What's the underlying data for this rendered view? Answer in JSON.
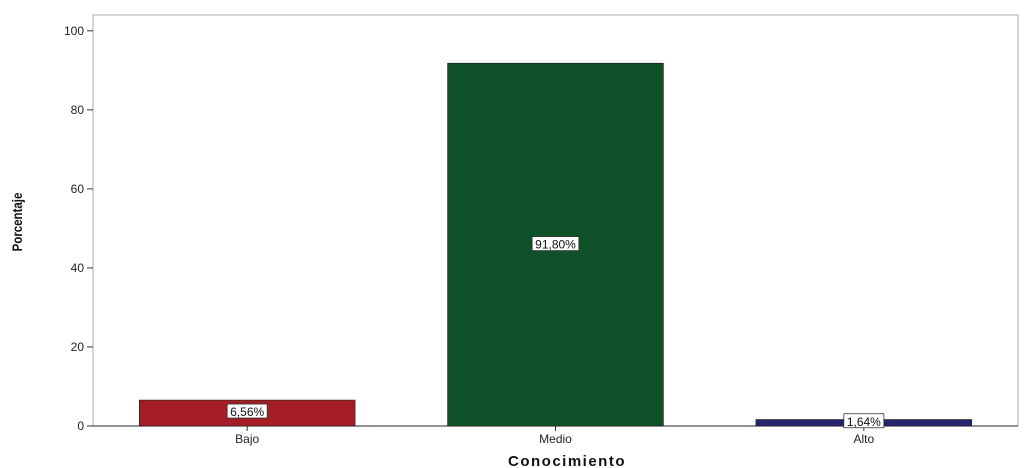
{
  "chart_data": {
    "type": "bar",
    "categories": [
      "Bajo",
      "Medio",
      "Alto"
    ],
    "values": [
      6.56,
      91.8,
      1.64
    ],
    "data_labels": [
      "6,56%",
      "91,80%",
      "1,64%"
    ],
    "colors": [
      "#a51d24",
      "#0e5128",
      "#23236e"
    ],
    "title": "",
    "xlabel": "Conocimiento",
    "ylabel": "Porcentaje",
    "ylim": [
      0,
      104
    ],
    "yticks": [
      0,
      20,
      40,
      60,
      80,
      100
    ],
    "ytick_labels": [
      "0",
      "20",
      "40",
      "60",
      "80",
      "100"
    ],
    "grid": false,
    "legend": "none"
  }
}
